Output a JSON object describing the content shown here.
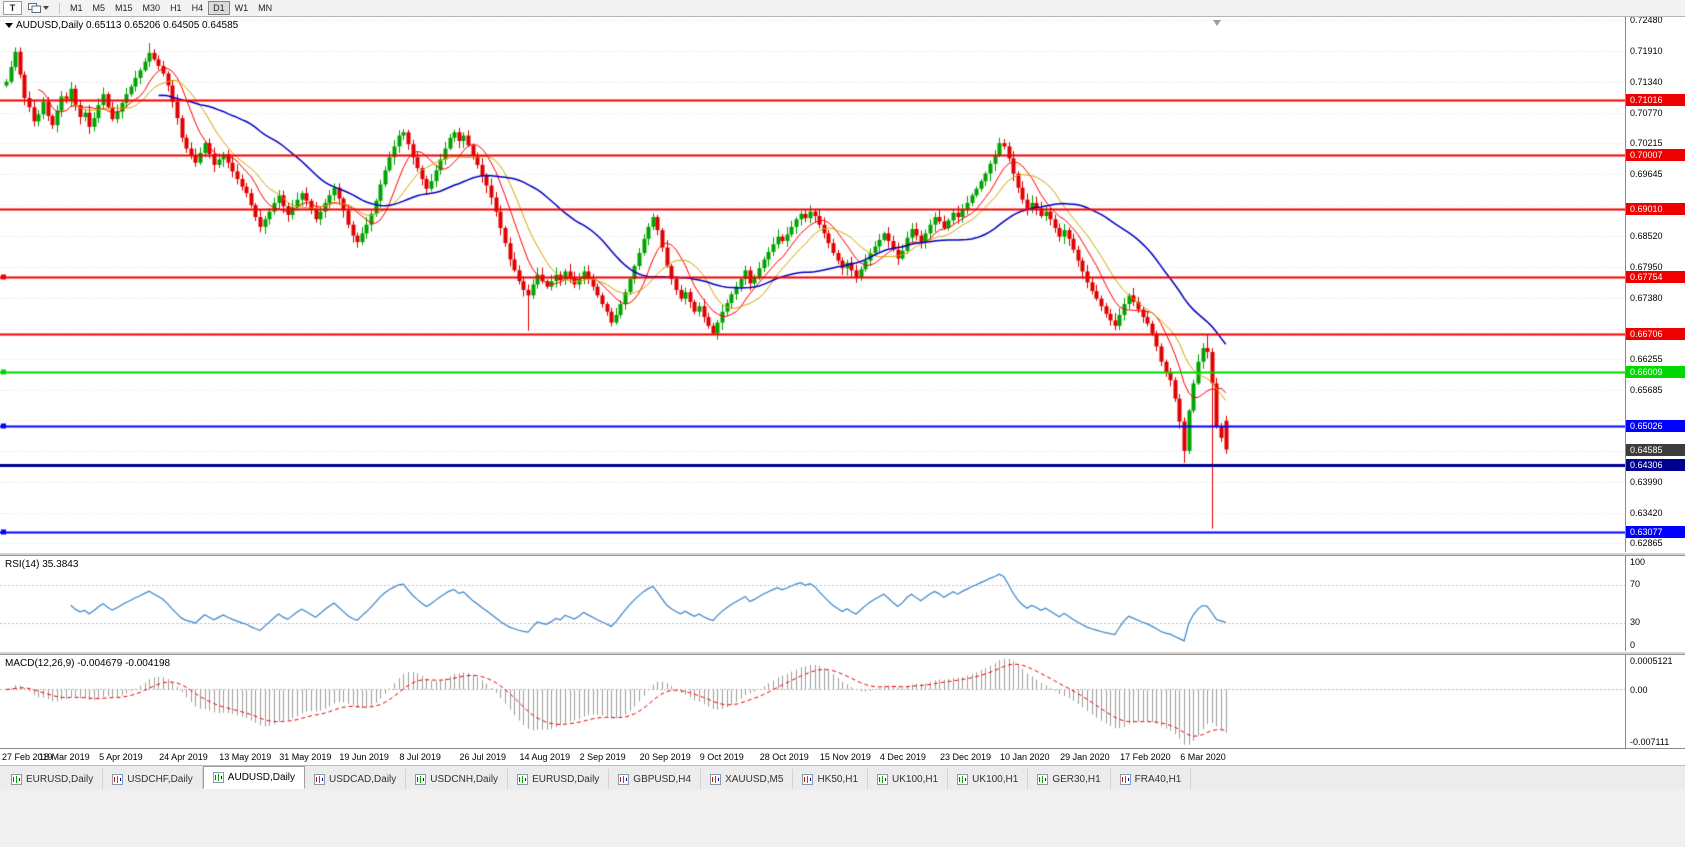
{
  "toolbar": {
    "tool_button": "T",
    "timeframes": [
      "M1",
      "M5",
      "M15",
      "M30",
      "H1",
      "H4",
      "D1",
      "W1",
      "MN"
    ],
    "active_timeframe": "D1"
  },
  "chart": {
    "symbol": "AUDUSD,Daily",
    "ohlc": "0.65113 0.65206 0.64505 0.64585",
    "colors": {
      "up_candle": "#00a300",
      "down_candle": "#e00000",
      "grid": "#dcdcdc",
      "background": "#ffffff"
    },
    "y_ticks": [
      "0.72480",
      "0.71910",
      "0.71340",
      "0.70770",
      "0.70215",
      "0.69645",
      "0.68520",
      "0.67950",
      "0.67380",
      "0.66255",
      "0.65685",
      "0.63990",
      "0.63420",
      "0.62865"
    ],
    "grid_extra": [
      0.69075,
      0.6681,
      0.6512,
      0.64555
    ],
    "hlines": [
      {
        "value": 0.71016,
        "label": "0.71016",
        "color": "#ef0000",
        "width": 2,
        "handles": false
      },
      {
        "value": 0.70007,
        "label": "0.70007",
        "color": "#ef0000",
        "width": 2,
        "handles": false
      },
      {
        "value": 0.6901,
        "label": "0.69010",
        "color": "#ef0000",
        "width": 2,
        "handles": false
      },
      {
        "value": 0.67754,
        "label": "0.67754",
        "color": "#ef0000",
        "width": 2,
        "handles": true
      },
      {
        "value": 0.66706,
        "label": "0.66706",
        "color": "#ef0000",
        "width": 2,
        "handles": false
      },
      {
        "value": 0.66009,
        "label": "0.66009",
        "color": "#00d800",
        "width": 2,
        "handles": true
      },
      {
        "value": 0.65026,
        "label": "0.65026",
        "color": "#0000ff",
        "width": 2,
        "handles": true
      },
      {
        "value": 0.64306,
        "label": "0.64306",
        "color": "#000090",
        "width": 3,
        "handles": false
      },
      {
        "value": 0.63077,
        "label": "0.63077",
        "color": "#0000ff",
        "width": 2,
        "handles": true
      }
    ],
    "current_price": {
      "label": "0.64585",
      "value": 0.64585,
      "badge_color": "#3c3c3c"
    },
    "ma": [
      {
        "period": 8,
        "color": "#ff0000",
        "width": 1
      },
      {
        "period": 13,
        "color": "#d6a500",
        "width": 1
      },
      {
        "period": 34,
        "color": "#0000c0",
        "width": 1.5
      }
    ],
    "series": {
      "closes": [
        0.7135,
        0.7162,
        0.719,
        0.7148,
        0.7105,
        0.7088,
        0.7062,
        0.7075,
        0.7098,
        0.7072,
        0.7055,
        0.7082,
        0.7108,
        0.71,
        0.7122,
        0.7092,
        0.707,
        0.7078,
        0.7052,
        0.7068,
        0.7092,
        0.7112,
        0.7088,
        0.7066,
        0.708,
        0.7096,
        0.7112,
        0.7126,
        0.7142,
        0.7156,
        0.7172,
        0.7188,
        0.7176,
        0.7164,
        0.715,
        0.7128,
        0.7098,
        0.7068,
        0.7032,
        0.7012,
        0.7,
        0.6986,
        0.7004,
        0.7022,
        0.7002,
        0.6982,
        0.6992,
        0.7002,
        0.6986,
        0.697,
        0.6956,
        0.6942,
        0.693,
        0.6908,
        0.6886,
        0.6868,
        0.6882,
        0.6896,
        0.6912,
        0.6926,
        0.6906,
        0.689,
        0.6904,
        0.6918,
        0.693,
        0.6916,
        0.69,
        0.6882,
        0.6896,
        0.6912,
        0.6926,
        0.694,
        0.692,
        0.6898,
        0.6872,
        0.6852,
        0.684,
        0.6856,
        0.6872,
        0.6892,
        0.6916,
        0.6946,
        0.6972,
        0.6996,
        0.7016,
        0.7036,
        0.7042,
        0.702,
        0.6996,
        0.6976,
        0.6956,
        0.6938,
        0.6952,
        0.6972,
        0.6992,
        0.7012,
        0.7032,
        0.7042,
        0.7026,
        0.7036,
        0.7018,
        0.6998,
        0.6982,
        0.6962,
        0.6944,
        0.6922,
        0.6896,
        0.6866,
        0.6838,
        0.6808,
        0.6788,
        0.6768,
        0.6752,
        0.6742,
        0.6762,
        0.678,
        0.6768,
        0.6758,
        0.6768,
        0.678,
        0.677,
        0.6786,
        0.6776,
        0.6762,
        0.6772,
        0.6786,
        0.6772,
        0.6758,
        0.6742,
        0.6726,
        0.6712,
        0.6692,
        0.6706,
        0.6726,
        0.6748,
        0.6772,
        0.6796,
        0.682,
        0.6846,
        0.6868,
        0.6886,
        0.6862,
        0.683,
        0.6796,
        0.6772,
        0.6752,
        0.6736,
        0.6748,
        0.673,
        0.6712,
        0.6722,
        0.6702,
        0.6686,
        0.6672,
        0.6692,
        0.6712,
        0.6728,
        0.6744,
        0.6758,
        0.6772,
        0.6788,
        0.6764,
        0.6776,
        0.6792,
        0.6808,
        0.6822,
        0.6836,
        0.685,
        0.6842,
        0.6854,
        0.6868,
        0.6882,
        0.6892,
        0.6884,
        0.6896,
        0.6888,
        0.6872,
        0.6856,
        0.6838,
        0.682,
        0.6806,
        0.6792,
        0.6802,
        0.6788,
        0.6776,
        0.679,
        0.6806,
        0.682,
        0.6832,
        0.6844,
        0.6856,
        0.6842,
        0.6826,
        0.681,
        0.6824,
        0.6848,
        0.6864,
        0.6852,
        0.684,
        0.6856,
        0.6872,
        0.6886,
        0.6878,
        0.6866,
        0.688,
        0.6894,
        0.6886,
        0.69,
        0.6912,
        0.6926,
        0.6938,
        0.6952,
        0.6966,
        0.6984,
        0.7,
        0.7022,
        0.7016,
        0.6994,
        0.6966,
        0.694,
        0.6918,
        0.69,
        0.6912,
        0.6902,
        0.6888,
        0.6896,
        0.6882,
        0.6866,
        0.685,
        0.6862,
        0.6846,
        0.6826,
        0.6806,
        0.6786,
        0.6766,
        0.675,
        0.6736,
        0.6722,
        0.6708,
        0.6696,
        0.6686,
        0.6706,
        0.6726,
        0.6742,
        0.673,
        0.6716,
        0.6702,
        0.669,
        0.6672,
        0.6648,
        0.662,
        0.66,
        0.6586,
        0.6552,
        0.651,
        0.6456,
        0.653,
        0.658,
        0.662,
        0.6645,
        0.6638,
        0.658,
        0.65,
        0.648,
        0.64585
      ],
      "overrides": {
        "2": {
          "h": 0.7198
        },
        "31": {
          "h": 0.7206
        },
        "86": {
          "h": 0.7048
        },
        "97": {
          "h": 0.7047
        },
        "113": {
          "l": 0.6677
        },
        "131": {
          "l": 0.6685
        },
        "153": {
          "l": 0.667
        },
        "215": {
          "h": 0.7032
        },
        "240": {
          "l": 0.6678
        },
        "255": {
          "l": 0.6434
        },
        "260": {
          "h": 0.667
        },
        "261": {
          "h": 0.6645,
          "l": 0.6313
        },
        "264": {
          "o": 0.65113,
          "h": 0.65206,
          "l": 0.64505
        }
      }
    }
  },
  "rsi": {
    "label": "RSI(14) 35.3843",
    "period": 14,
    "color": "#3d85c8",
    "levels": [
      "100",
      "70",
      "30",
      "0"
    ]
  },
  "macd": {
    "label": "MACD(12,26,9) -0.004679 -0.004198",
    "fast": 12,
    "slow": 26,
    "signal": 9,
    "hist_color": "#9e9e9e",
    "signal_color": "#f00000",
    "scale_labels": {
      "top": "0.0005121",
      "zero": "0.00",
      "bottom": "-0.007111"
    }
  },
  "x_axis": {
    "bar_step": 13,
    "dates": [
      "27 Feb 2019",
      "18 Mar 2019",
      "5 Apr 2019",
      "24 Apr 2019",
      "13 May 2019",
      "31 May 2019",
      "19 Jun 2019",
      "8 Jul 2019",
      "26 Jul 2019",
      "14 Aug 2019",
      "2 Sep 2019",
      "20 Sep 2019",
      "9 Oct 2019",
      "28 Oct 2019",
      "15 Nov 2019",
      "4 Dec 2019",
      "23 Dec 2019",
      "10 Jan 2020",
      "29 Jan 2020",
      "17 Feb 2020",
      "6 Mar 2020"
    ]
  },
  "tabs": {
    "active_index": 2,
    "items": [
      "EURUSD,Daily",
      "USDCHF,Daily",
      "AUDUSD,Daily",
      "USDCAD,Daily",
      "USDCNH,Daily",
      "EURUSD,Daily",
      "GBPUSD,H4",
      "XAUUSD,M5",
      "HK50,H1",
      "UK100,H1",
      "UK100,H1",
      "GER30,H1",
      "FRA40,H1"
    ]
  }
}
